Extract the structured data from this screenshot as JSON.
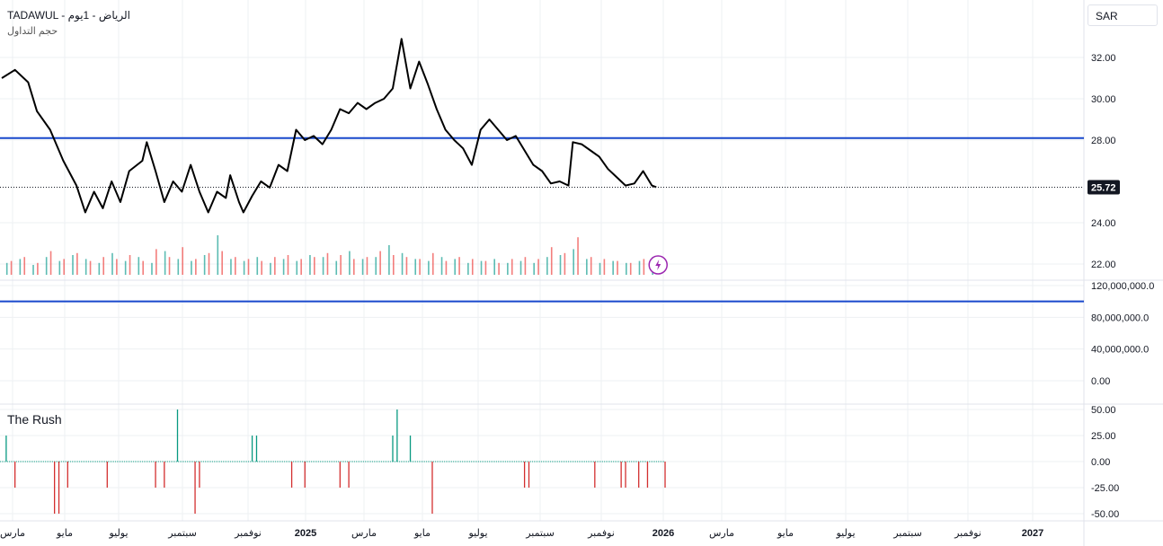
{
  "header": {
    "symbol_line": "TADAWUL - ﺍﻟﺮﻳﺎﺽ - 1ﻳﻮﻡ",
    "sub_line": "ﺣﺠﻢ ﺍﻟﺘﺪﺍﻭﻝ"
  },
  "currency": "SAR",
  "indicator": {
    "title": "The Rush"
  },
  "icons": {
    "alert": "lightning-icon"
  },
  "colors": {
    "price": "#000000",
    "hline": "#1848cc",
    "vol_up": "#26a69a",
    "vol_down": "#ef5350",
    "rush_up": "#089981",
    "rush_down": "#d32f2f",
    "last_bg": "#131722",
    "alert": "#9c27b0"
  },
  "chart_data": [
    {
      "type": "line",
      "name": "price",
      "ylim": [
        21.2,
        33.9
      ],
      "y_ticks": [
        "32.00",
        "30.00",
        "28.00",
        "24.00",
        "22.00"
      ],
      "last_value": "25.72",
      "horizontal_line": 28.1,
      "x_labels": [
        "ﻣﺎﺭﺱ",
        "ﻣﺎﻳﻮ",
        "ﻳﻮﻟﻴﻮ",
        "ﺳﺒﺘﻤﺒﺮ",
        "ﻧﻮﻓﻤﺒﺮ",
        "2025",
        "ﻣﺎﺭﺱ",
        "ﻣﺎﻳﻮ",
        "ﻳﻮﻟﻴﻮ",
        "ﺳﺒﺘﻤﺒﺮ",
        "ﻧﻮﻓﻤﺒﺮ",
        "2026",
        "ﻣﺎﺭﺱ",
        "ﻣﺎﻳﻮ",
        "ﻳﻮﻟﻴﻮ",
        "ﺳﺒﺘﻤﺒﺮ",
        "ﻧﻮﻓﻤﺒﺮ",
        "2027"
      ],
      "x_domain": [
        0,
        190
      ],
      "points": [
        [
          0,
          31.0
        ],
        [
          3,
          31.4
        ],
        [
          6,
          30.8
        ],
        [
          8,
          29.4
        ],
        [
          11,
          28.5
        ],
        [
          14,
          27.0
        ],
        [
          17,
          25.8
        ],
        [
          19,
          24.5
        ],
        [
          21,
          25.5
        ],
        [
          23,
          24.7
        ],
        [
          25,
          26.0
        ],
        [
          27,
          25.0
        ],
        [
          29,
          26.5
        ],
        [
          32,
          27.0
        ],
        [
          33,
          27.9
        ],
        [
          35,
          26.5
        ],
        [
          37,
          25.0
        ],
        [
          39,
          26.0
        ],
        [
          41,
          25.5
        ],
        [
          43,
          26.8
        ],
        [
          45,
          25.5
        ],
        [
          47,
          24.5
        ],
        [
          49,
          25.5
        ],
        [
          51,
          25.2
        ],
        [
          52,
          26.3
        ],
        [
          54,
          25.0
        ],
        [
          55,
          24.5
        ],
        [
          57,
          25.3
        ],
        [
          59,
          26.0
        ],
        [
          61,
          25.7
        ],
        [
          63,
          26.8
        ],
        [
          65,
          26.5
        ],
        [
          67,
          28.5
        ],
        [
          69,
          28.0
        ],
        [
          71,
          28.2
        ],
        [
          73,
          27.8
        ],
        [
          75,
          28.5
        ],
        [
          77,
          29.5
        ],
        [
          79,
          29.3
        ],
        [
          81,
          29.8
        ],
        [
          83,
          29.5
        ],
        [
          85,
          29.8
        ],
        [
          87,
          30.0
        ],
        [
          89,
          30.5
        ],
        [
          91,
          32.9
        ],
        [
          93,
          30.5
        ],
        [
          95,
          31.8
        ],
        [
          97,
          30.7
        ],
        [
          99,
          29.5
        ],
        [
          101,
          28.5
        ],
        [
          103,
          28.0
        ],
        [
          105,
          27.6
        ],
        [
          107,
          26.8
        ],
        [
          109,
          28.5
        ],
        [
          111,
          29.0
        ],
        [
          113,
          28.5
        ],
        [
          115,
          28.0
        ],
        [
          117,
          28.2
        ],
        [
          119,
          27.5
        ],
        [
          121,
          26.8
        ],
        [
          123,
          26.5
        ],
        [
          125,
          25.9
        ],
        [
          127,
          26.0
        ],
        [
          129,
          25.8
        ],
        [
          130,
          27.9
        ],
        [
          132,
          27.8
        ],
        [
          134,
          27.5
        ],
        [
          136,
          27.2
        ],
        [
          138,
          26.6
        ],
        [
          140,
          26.2
        ],
        [
          142,
          25.8
        ],
        [
          144,
          25.9
        ],
        [
          146,
          26.5
        ],
        [
          148,
          25.8
        ],
        [
          149,
          25.72
        ]
      ]
    },
    {
      "type": "bar",
      "name": "volume",
      "ylim": [
        0,
        150000000
      ],
      "y_ticks": [
        "120,000,000.0",
        "80,000,000.0",
        "40,000,000.0",
        "0.00"
      ],
      "horizontal_line": 100000000,
      "x_domain": [
        0,
        190
      ],
      "up": [
        [
          1,
          6
        ],
        [
          4,
          8
        ],
        [
          7,
          5
        ],
        [
          10,
          9
        ],
        [
          13,
          7
        ],
        [
          16,
          10
        ],
        [
          19,
          8
        ],
        [
          22,
          6
        ],
        [
          25,
          11
        ],
        [
          28,
          7
        ],
        [
          31,
          9
        ],
        [
          34,
          6
        ],
        [
          37,
          12
        ],
        [
          40,
          8
        ],
        [
          43,
          7
        ],
        [
          46,
          10
        ],
        [
          49,
          20
        ],
        [
          52,
          8
        ],
        [
          55,
          7
        ],
        [
          58,
          9
        ],
        [
          61,
          6
        ],
        [
          64,
          8
        ],
        [
          67,
          7
        ],
        [
          70,
          10
        ],
        [
          73,
          9
        ],
        [
          76,
          7
        ],
        [
          79,
          12
        ],
        [
          82,
          8
        ],
        [
          85,
          9
        ],
        [
          88,
          15
        ],
        [
          91,
          11
        ],
        [
          94,
          8
        ],
        [
          97,
          7
        ],
        [
          100,
          9
        ],
        [
          103,
          8
        ],
        [
          106,
          6
        ],
        [
          109,
          7
        ],
        [
          112,
          8
        ],
        [
          115,
          6
        ],
        [
          118,
          7
        ],
        [
          121,
          6
        ],
        [
          124,
          9
        ],
        [
          127,
          10
        ],
        [
          130,
          13
        ],
        [
          133,
          8
        ],
        [
          136,
          6
        ],
        [
          139,
          7
        ],
        [
          142,
          6
        ],
        [
          145,
          7
        ],
        [
          148,
          9
        ]
      ],
      "down": [
        [
          2,
          7
        ],
        [
          5,
          9
        ],
        [
          8,
          6
        ],
        [
          11,
          12
        ],
        [
          14,
          8
        ],
        [
          17,
          11
        ],
        [
          20,
          7
        ],
        [
          23,
          9
        ],
        [
          26,
          8
        ],
        [
          29,
          10
        ],
        [
          32,
          7
        ],
        [
          35,
          13
        ],
        [
          38,
          9
        ],
        [
          41,
          14
        ],
        [
          44,
          8
        ],
        [
          47,
          11
        ],
        [
          50,
          12
        ],
        [
          53,
          9
        ],
        [
          56,
          8
        ],
        [
          59,
          7
        ],
        [
          62,
          9
        ],
        [
          65,
          10
        ],
        [
          68,
          8
        ],
        [
          71,
          9
        ],
        [
          74,
          11
        ],
        [
          77,
          10
        ],
        [
          80,
          8
        ],
        [
          83,
          9
        ],
        [
          86,
          12
        ],
        [
          89,
          10
        ],
        [
          92,
          9
        ],
        [
          95,
          8
        ],
        [
          98,
          11
        ],
        [
          101,
          7
        ],
        [
          104,
          9
        ],
        [
          107,
          8
        ],
        [
          110,
          7
        ],
        [
          113,
          6
        ],
        [
          116,
          8
        ],
        [
          119,
          9
        ],
        [
          122,
          8
        ],
        [
          125,
          14
        ],
        [
          128,
          11
        ],
        [
          131,
          19
        ],
        [
          134,
          9
        ],
        [
          137,
          8
        ],
        [
          140,
          7
        ],
        [
          143,
          6
        ],
        [
          146,
          8
        ]
      ]
    },
    {
      "type": "bar",
      "name": "The Rush",
      "ylim": [
        -55,
        55
      ],
      "y_ticks": [
        "50.00",
        "25.00",
        "0.00",
        "-25.00",
        "-50.00"
      ],
      "x_domain": [
        0,
        190
      ],
      "bars": [
        [
          1,
          25
        ],
        [
          3,
          -25
        ],
        [
          12,
          -50
        ],
        [
          13,
          -50
        ],
        [
          15,
          -25
        ],
        [
          24,
          -25
        ],
        [
          35,
          -25
        ],
        [
          37,
          -25
        ],
        [
          40,
          50
        ],
        [
          44,
          -50
        ],
        [
          45,
          -25
        ],
        [
          57,
          25
        ],
        [
          58,
          25
        ],
        [
          66,
          -25
        ],
        [
          69,
          -25
        ],
        [
          77,
          -25
        ],
        [
          79,
          -25
        ],
        [
          89,
          25
        ],
        [
          90,
          50
        ],
        [
          93,
          25
        ],
        [
          98,
          -50
        ],
        [
          119,
          -25
        ],
        [
          120,
          -25
        ],
        [
          135,
          -25
        ],
        [
          141,
          -25
        ],
        [
          142,
          -25
        ],
        [
          145,
          -25
        ],
        [
          147,
          -25
        ],
        [
          151,
          -25
        ]
      ]
    }
  ]
}
